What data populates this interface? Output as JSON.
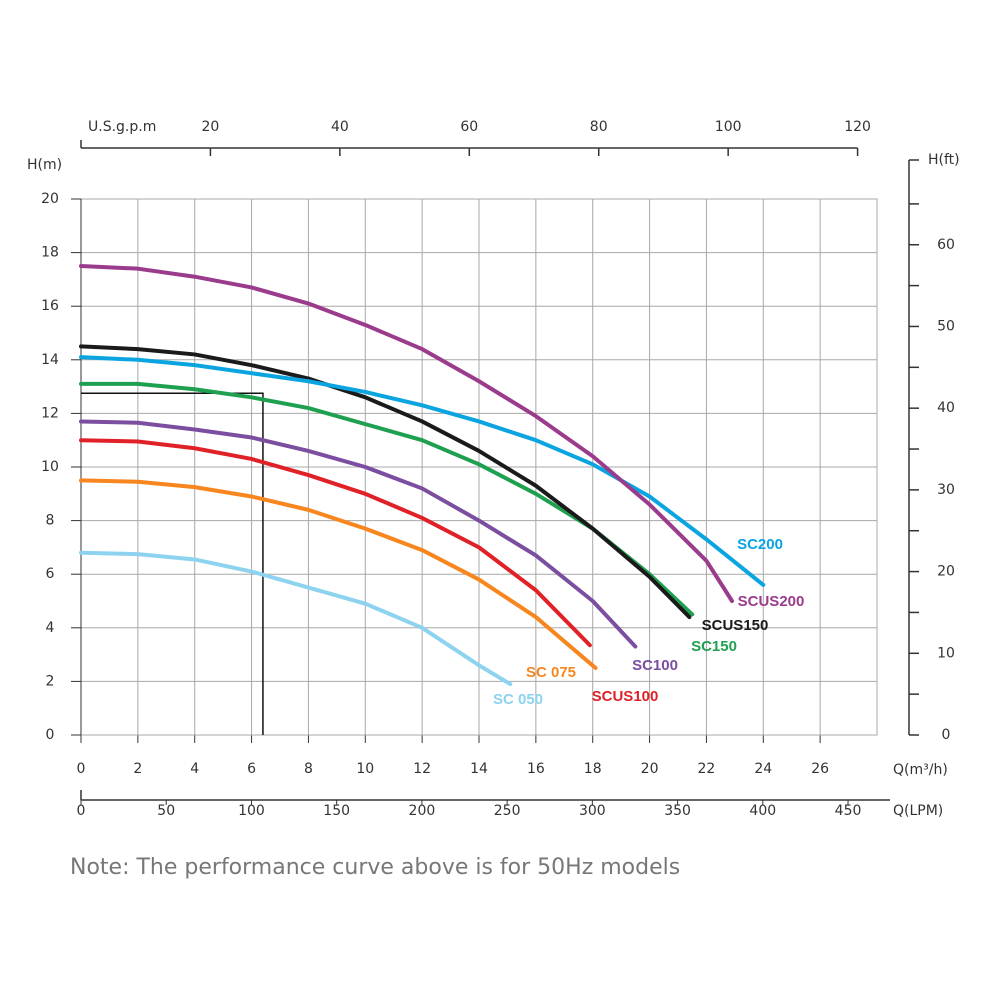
{
  "chart_data": {
    "type": "line",
    "y_label": "H(m)",
    "x_label": "Q(m³/h)",
    "xlim": [
      0,
      28
    ],
    "xticks": [
      0,
      2,
      4,
      6,
      8,
      10,
      12,
      14,
      16,
      18,
      20,
      22,
      24,
      26
    ],
    "ylim": [
      0,
      20
    ],
    "yticks": [
      0,
      2,
      4,
      6,
      8,
      10,
      12,
      14,
      16,
      18,
      20
    ],
    "grid": true,
    "top_axis": {
      "label": "U.S.g.p.m",
      "xlim": [
        0,
        123
      ],
      "xticks": [
        20,
        40,
        60,
        80,
        100,
        120
      ]
    },
    "bottom_axis": {
      "label": "Q(LPM)",
      "xlim": [
        0,
        467
      ],
      "xticks": [
        0,
        50,
        100,
        150,
        200,
        250,
        300,
        350,
        400,
        450
      ]
    },
    "y2_label": "H(ft)",
    "y2lim": [
      0,
      65.6
    ],
    "y2ticks": [
      0,
      10,
      20,
      30,
      40,
      50,
      60
    ],
    "y2minorticks": [
      5,
      15,
      25,
      35,
      45,
      55,
      65
    ],
    "reference_point": {
      "x": 6.4,
      "y": 12.75
    },
    "series": [
      {
        "name": "SC 050",
        "color": "#8dd3f0",
        "x": [
          0,
          2,
          4,
          6,
          8,
          10,
          12,
          14,
          15.1
        ],
        "values": [
          6.8,
          6.75,
          6.55,
          6.1,
          5.5,
          4.9,
          4.0,
          2.6,
          1.9
        ]
      },
      {
        "name": "SC 075",
        "color": "#f7861e",
        "x": [
          0,
          2,
          4,
          6,
          8,
          10,
          12,
          14,
          16,
          18.1
        ],
        "values": [
          9.5,
          9.45,
          9.25,
          8.9,
          8.4,
          7.7,
          6.9,
          5.8,
          4.4,
          2.5
        ]
      },
      {
        "name": "SCUS100",
        "color": "#e02128",
        "x": [
          0,
          2,
          4,
          6,
          8,
          10,
          12,
          14,
          16,
          17.9
        ],
        "values": [
          11.0,
          10.95,
          10.7,
          10.3,
          9.7,
          9.0,
          8.1,
          7.0,
          5.4,
          3.35
        ]
      },
      {
        "name": "SC100",
        "color": "#7b4ea0",
        "x": [
          0,
          2,
          4,
          6,
          8,
          10,
          12,
          14,
          16,
          18,
          19.5
        ],
        "values": [
          11.7,
          11.65,
          11.4,
          11.1,
          10.6,
          10.0,
          9.2,
          8.0,
          6.7,
          5.0,
          3.3
        ]
      },
      {
        "name": "SC150",
        "color": "#1fa050",
        "x": [
          0,
          2,
          4,
          6,
          8,
          10,
          12,
          14,
          16,
          18,
          20,
          21.5
        ],
        "values": [
          13.1,
          13.1,
          12.9,
          12.6,
          12.2,
          11.6,
          11.0,
          10.1,
          9.0,
          7.7,
          6.0,
          4.5
        ]
      },
      {
        "name": "SCUS150",
        "color": "#1a1a1a",
        "x": [
          0,
          2,
          4,
          6,
          8,
          10,
          12,
          14,
          16,
          18,
          20,
          21.4
        ],
        "values": [
          14.5,
          14.4,
          14.2,
          13.8,
          13.3,
          12.6,
          11.7,
          10.6,
          9.3,
          7.7,
          5.9,
          4.4
        ]
      },
      {
        "name": "SC200",
        "color": "#0aa5e0",
        "x": [
          0,
          2,
          4,
          6,
          8,
          10,
          12,
          14,
          16,
          18,
          20,
          22,
          24
        ],
        "values": [
          14.1,
          14.0,
          13.8,
          13.5,
          13.2,
          12.8,
          12.3,
          11.7,
          11.0,
          10.1,
          8.9,
          7.3,
          5.6
        ]
      },
      {
        "name": "SCUS200",
        "color": "#9b3b8c",
        "x": [
          0,
          2,
          4,
          6,
          8,
          10,
          12,
          14,
          16,
          18,
          20,
          22,
          22.9
        ],
        "values": [
          17.5,
          17.4,
          17.1,
          16.7,
          16.1,
          15.3,
          14.4,
          13.2,
          11.9,
          10.4,
          8.6,
          6.5,
          5.0
        ]
      }
    ]
  },
  "note": "Note: The performance curve above is for 50Hz models"
}
